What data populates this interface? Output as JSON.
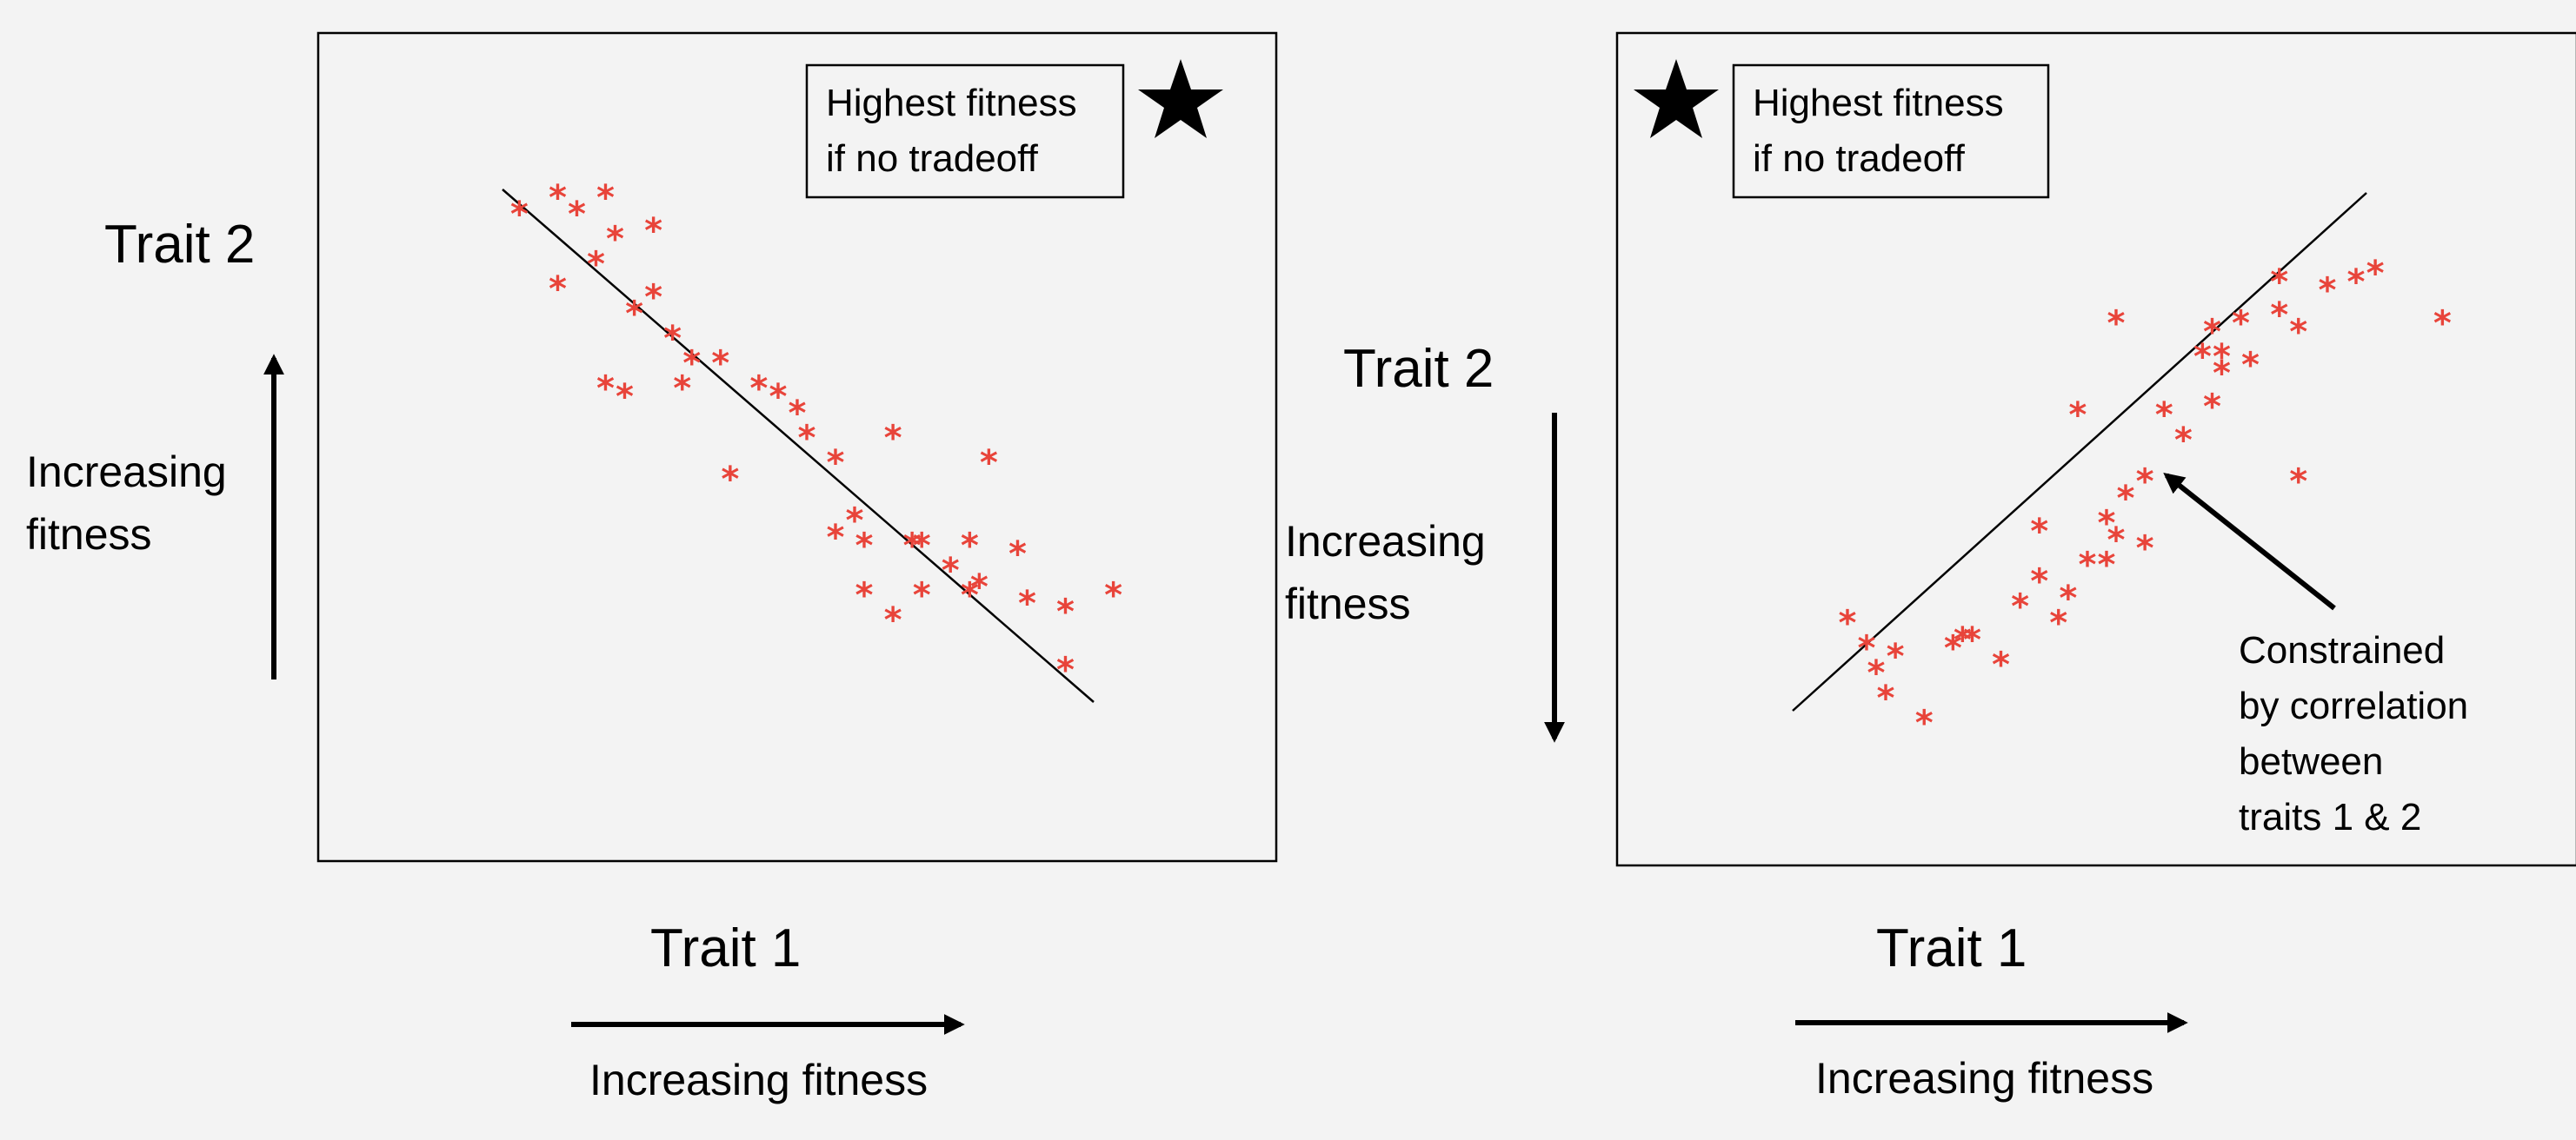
{
  "colors": {
    "points": "#e8443a",
    "background": "#f3f3f3",
    "ink": "#000000"
  },
  "left_panel": {
    "y_title": "Trait 2",
    "y_fitness_line1": "Increasing",
    "y_fitness_line2": "fitness",
    "x_title": "Trait 1",
    "x_fitness": "Increasing fitness",
    "legend_line1": "Highest fitness",
    "legend_line2": "if no tradeoff",
    "star_icon": "star-icon",
    "point_glyph": "*"
  },
  "right_panel": {
    "y_title": "Trait 2",
    "y_fitness_line1": "Increasing",
    "y_fitness_line2": "fitness",
    "x_title": "Trait 1",
    "x_fitness": "Increasing fitness",
    "legend_line1": "Highest fitness",
    "legend_line2": "if no tradeoff",
    "star_icon": "star-icon",
    "point_glyph": "*",
    "annotation_line1": "Constrained",
    "annotation_line2": "by correlation",
    "annotation_line3": "between",
    "annotation_line4": "traits 1 & 2"
  },
  "chart_data": [
    {
      "type": "scatter",
      "title": "",
      "xlabel": "Trait 1",
      "ylabel": "Trait 2",
      "xlim": [
        0,
        10
      ],
      "ylim": [
        0,
        10
      ],
      "trend_line": {
        "from": [
          1.9,
          8.2
        ],
        "to": [
          8.1,
          1.9
        ]
      },
      "x": [
        2.1,
        2.5,
        2.7,
        3.0,
        3.5,
        2.5,
        2.9,
        3.0,
        3.3,
        3.5,
        3.7,
        3.9,
        3.1,
        3.2,
        3.8,
        4.2,
        4.6,
        4.8,
        5.0,
        5.1,
        5.4,
        6.0,
        7.0,
        4.3,
        5.4,
        5.6,
        5.7,
        6.2,
        6.3,
        6.6,
        6.8,
        6.9,
        7.3,
        7.4,
        7.8,
        5.7,
        6.3,
        6.8,
        7.8,
        8.3,
        6.0
      ],
      "y": [
        7.9,
        8.1,
        7.9,
        8.1,
        7.7,
        7.0,
        7.3,
        5.8,
        6.7,
        6.9,
        6.4,
        6.1,
        7.6,
        5.7,
        5.8,
        6.1,
        5.8,
        5.7,
        5.5,
        5.2,
        4.9,
        5.2,
        4.9,
        4.7,
        4.0,
        4.2,
        3.9,
        3.9,
        3.9,
        3.6,
        3.9,
        3.4,
        3.8,
        3.2,
        3.1,
        3.3,
        3.3,
        3.3,
        2.4,
        3.3,
        3.0
      ]
    },
    {
      "type": "scatter",
      "title": "",
      "xlabel": "Trait 1",
      "ylabel": "Trait 2",
      "xlim": [
        0,
        10
      ],
      "ylim": [
        0,
        10
      ],
      "trend_line": {
        "from": [
          1.9,
          1.9
        ],
        "to": [
          8.1,
          8.2
        ]
      },
      "x": [
        2.4,
        2.6,
        2.7,
        2.8,
        2.9,
        3.2,
        3.6,
        3.5,
        3.7,
        4.0,
        4.2,
        4.4,
        4.6,
        4.7,
        4.9,
        5.1,
        5.3,
        5.5,
        4.8,
        4.4,
        5.1,
        5.2,
        5.5,
        5.9,
        6.1,
        6.2,
        6.3,
        6.5,
        6.9,
        6.9,
        7.1,
        7.4,
        7.7,
        7.9,
        8.6,
        5.2,
        5.7,
        6.2,
        6.3,
        6.6,
        7.1
      ],
      "y": [
        3.0,
        2.7,
        2.4,
        2.1,
        2.6,
        1.8,
        2.8,
        2.7,
        2.8,
        2.5,
        3.2,
        3.5,
        3.0,
        3.3,
        3.7,
        4.2,
        4.5,
        4.7,
        5.5,
        4.1,
        3.7,
        4.0,
        3.9,
        5.2,
        6.2,
        6.5,
        6.0,
        6.6,
        6.7,
        7.1,
        6.5,
        7.0,
        7.1,
        7.2,
        6.6,
        6.6,
        5.5,
        5.6,
        6.2,
        6.1,
        4.7
      ]
    }
  ]
}
